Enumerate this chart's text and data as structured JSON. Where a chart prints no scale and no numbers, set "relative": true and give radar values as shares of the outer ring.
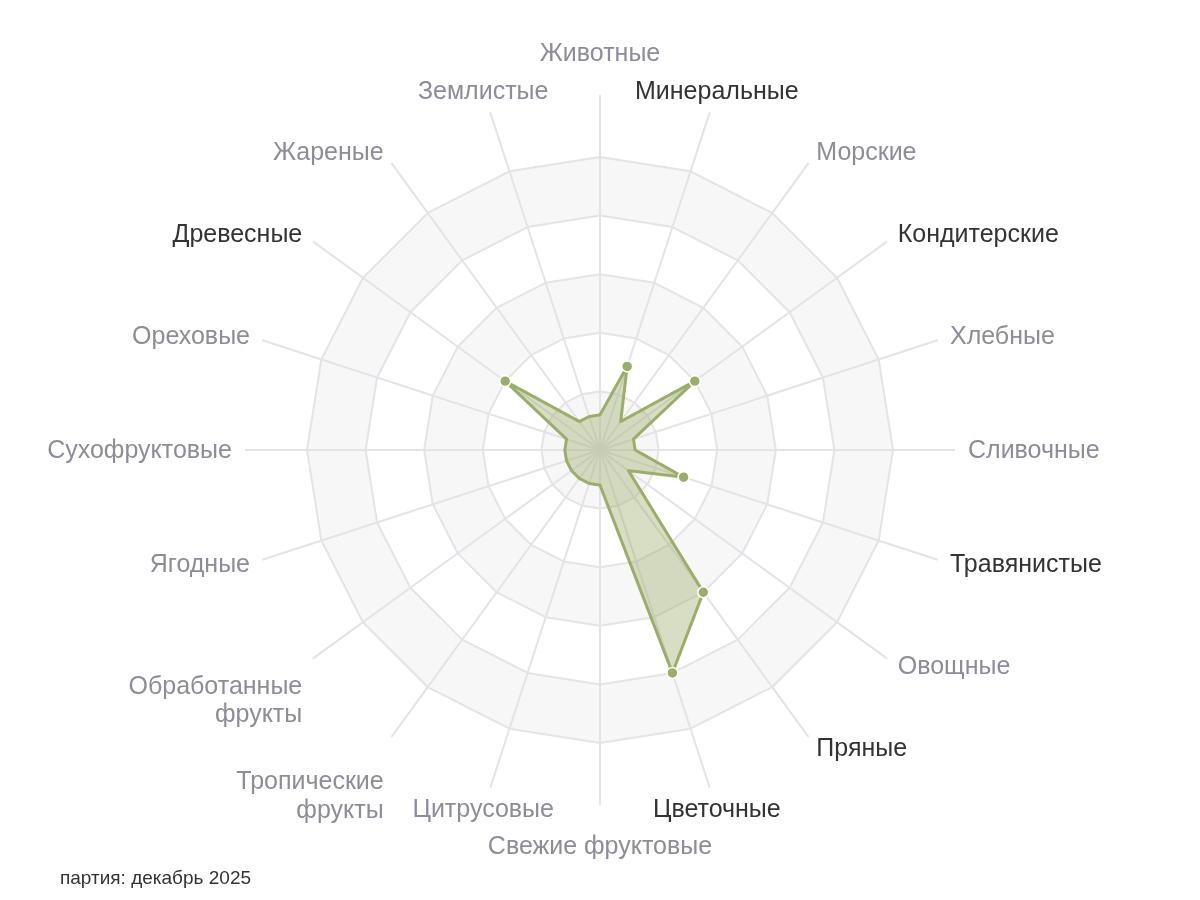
{
  "chart_data": {
    "type": "radar",
    "relative": true,
    "categories": [
      "Животные",
      "Минеральные",
      "Морские",
      "Кондитерские",
      "Хлебные",
      "Сливочные",
      "Травянистые",
      "Овощные",
      "Пряные",
      "Цветочные",
      "Свежие фруктовые",
      "Цитрусовые",
      "Тропические фрукты",
      "Обработанные фрукты",
      "Ягодные",
      "Сухофруктовые",
      "Ореховые",
      "Древесные",
      "Жареные",
      "Землистые"
    ],
    "series": [
      {
        "color": "#9aad6a",
        "values": [
          0.12,
          0.3,
          0.12,
          0.4,
          0.12,
          0.12,
          0.3,
          0.12,
          0.6,
          0.8,
          0.12,
          0.12,
          0.12,
          0.12,
          0.12,
          0.12,
          0.12,
          0.4,
          0.12,
          0.12
        ]
      }
    ],
    "grid": true,
    "marker": "circle",
    "annotations": [
      "партия: декабрь 2025"
    ]
  }
}
